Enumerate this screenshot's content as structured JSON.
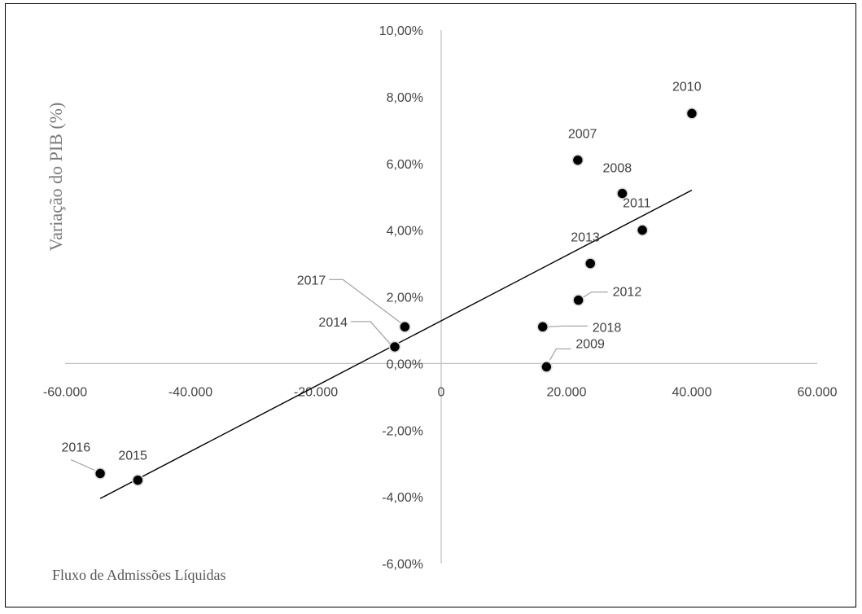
{
  "chart_data": {
    "type": "scatter",
    "title": "",
    "xlabel": "Fluxo de Admissões Líquidas",
    "ylabel": "Variação do PIB (%)",
    "xlim": [
      -60000,
      60000
    ],
    "ylim": [
      -6,
      10
    ],
    "grid": false,
    "x_ticks": [
      -60000,
      -40000,
      -20000,
      0,
      20000,
      40000,
      60000
    ],
    "x_tick_labels": [
      "-60.000",
      "-40.000",
      "-20.000",
      "0",
      "20.000",
      "40.000",
      "60.000"
    ],
    "y_ticks": [
      -6,
      -4,
      -2,
      0,
      2,
      4,
      6,
      8,
      10
    ],
    "y_tick_labels": [
      "-6,00%",
      "-4,00%",
      "-2,00%",
      "0,00%",
      "2,00%",
      "4,00%",
      "6,00%",
      "8,00%",
      "10,00%"
    ],
    "points": [
      {
        "label": "2007",
        "x": 21800,
        "y": 6.1
      },
      {
        "label": "2008",
        "x": 28900,
        "y": 5.1
      },
      {
        "label": "2009",
        "x": 16800,
        "y": -0.1
      },
      {
        "label": "2010",
        "x": 40000,
        "y": 7.5
      },
      {
        "label": "2011",
        "x": 32100,
        "y": 4.0
      },
      {
        "label": "2012",
        "x": 21900,
        "y": 1.9
      },
      {
        "label": "2013",
        "x": 23800,
        "y": 3.0
      },
      {
        "label": "2014",
        "x": -7400,
        "y": 0.5
      },
      {
        "label": "2015",
        "x": -48400,
        "y": -3.5
      },
      {
        "label": "2016",
        "x": -54400,
        "y": -3.3
      },
      {
        "label": "2017",
        "x": -5800,
        "y": 1.1
      },
      {
        "label": "2018",
        "x": 16200,
        "y": 1.1
      }
    ],
    "trendline": {
      "x": [
        -54400,
        40000
      ],
      "y": [
        -4.05,
        5.2
      ]
    }
  }
}
